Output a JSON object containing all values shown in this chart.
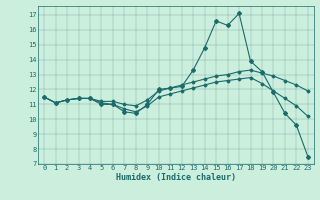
{
  "title": "",
  "xlabel": "Humidex (Indice chaleur)",
  "ylabel": "",
  "background_color": "#cceedd",
  "line_color": "#1a6b6b",
  "xlim": [
    -0.5,
    23.5
  ],
  "ylim": [
    7,
    17.6
  ],
  "yticks": [
    7,
    8,
    9,
    10,
    11,
    12,
    13,
    14,
    15,
    16,
    17
  ],
  "xticks": [
    0,
    1,
    2,
    3,
    4,
    5,
    6,
    7,
    8,
    9,
    10,
    11,
    12,
    13,
    14,
    15,
    16,
    17,
    18,
    19,
    20,
    21,
    22,
    23
  ],
  "line1_x": [
    0,
    1,
    2,
    3,
    4,
    5,
    6,
    7,
    8,
    9,
    10,
    11,
    12,
    13,
    14,
    15,
    16,
    17,
    18,
    19,
    20,
    21,
    22,
    23
  ],
  "line1_y": [
    11.5,
    11.1,
    11.3,
    11.4,
    11.4,
    11.0,
    11.0,
    10.5,
    10.4,
    11.0,
    12.0,
    12.1,
    12.2,
    13.3,
    14.8,
    16.6,
    16.3,
    17.1,
    13.9,
    13.2,
    11.8,
    10.4,
    9.6,
    7.5
  ],
  "line2_x": [
    0,
    1,
    2,
    3,
    4,
    5,
    6,
    7,
    8,
    9,
    10,
    11,
    12,
    13,
    14,
    15,
    16,
    17,
    18,
    19,
    20,
    21,
    22,
    23
  ],
  "line2_y": [
    11.5,
    11.1,
    11.3,
    11.4,
    11.4,
    11.2,
    11.2,
    11.0,
    10.9,
    11.3,
    11.9,
    12.1,
    12.3,
    12.5,
    12.7,
    12.9,
    13.0,
    13.2,
    13.3,
    13.1,
    12.9,
    12.6,
    12.3,
    11.9
  ],
  "line3_x": [
    0,
    1,
    2,
    3,
    4,
    5,
    6,
    7,
    8,
    9,
    10,
    11,
    12,
    13,
    14,
    15,
    16,
    17,
    18,
    19,
    20,
    21,
    22,
    23
  ],
  "line3_y": [
    11.5,
    11.1,
    11.3,
    11.4,
    11.4,
    11.1,
    11.0,
    10.7,
    10.5,
    10.9,
    11.5,
    11.7,
    11.9,
    12.1,
    12.3,
    12.5,
    12.6,
    12.7,
    12.8,
    12.4,
    11.9,
    11.4,
    10.9,
    10.2
  ],
  "xlabel_fontsize": 6,
  "tick_fontsize": 5,
  "marker_size": 2,
  "linewidth": 0.8
}
